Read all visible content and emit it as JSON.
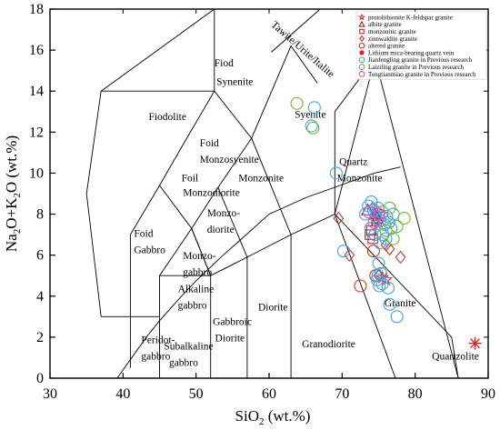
{
  "chart_data": {
    "type": "scatter",
    "title": "",
    "xlabel": {
      "main": "SiO",
      "sub": "2",
      "rest": " (wt.%)"
    },
    "ylabel": {
      "parts": [
        "Na",
        "2",
        "O+K",
        "2",
        "O (wt.%)"
      ]
    },
    "xlim": [
      30,
      90
    ],
    "ylim": [
      0,
      18
    ],
    "xticks": [
      "30",
      "40",
      "50",
      "60",
      "70",
      "80",
      "90"
    ],
    "yticks": [
      "0",
      "2",
      "4",
      "6",
      "8",
      "10",
      "12",
      "14",
      "16",
      "18"
    ],
    "field_boundaries": [
      [
        [
          41,
          0.5
        ],
        [
          41,
          7
        ],
        [
          45,
          9.4
        ],
        [
          48.4,
          11.5
        ],
        [
          52.5,
          14
        ],
        [
          57.6,
          11.7
        ],
        [
          63,
          16.2
        ],
        [
          66.6,
          14.4
        ]
      ],
      [
        [
          45,
          0
        ],
        [
          45,
          5
        ],
        [
          52,
          5
        ],
        [
          57,
          5.9
        ],
        [
          63,
          7
        ],
        [
          69,
          8
        ],
        [
          77.3,
          0
        ]
      ],
      [
        [
          52,
          0
        ],
        [
          52,
          5
        ],
        [
          49.4,
          7.3
        ],
        [
          53,
          9.3
        ],
        [
          57.6,
          11.7
        ]
      ],
      [
        [
          57,
          0
        ],
        [
          57,
          5.9
        ],
        [
          53,
          9.3
        ]
      ],
      [
        [
          63,
          0
        ],
        [
          63,
          7
        ],
        [
          57.6,
          11.7
        ]
      ],
      [
        [
          41,
          3
        ],
        [
          45,
          3
        ]
      ],
      [
        [
          45,
          5
        ],
        [
          49.4,
          7.3
        ],
        [
          45,
          9.4
        ]
      ],
      [
        [
          49.4,
          7.3
        ],
        [
          52,
          5
        ]
      ],
      [
        [
          69,
          8
        ],
        [
          69,
          13
        ]
      ],
      [
        [
          60.3,
          15.9
        ],
        [
          67,
          18
        ]
      ],
      [
        [
          37,
          3
        ],
        [
          35,
          9
        ],
        [
          37,
          14
        ],
        [
          52.5,
          14
        ],
        [
          52.5,
          18
        ]
      ],
      [
        [
          37,
          14
        ],
        [
          52.5,
          18
        ]
      ],
      [
        [
          41,
          3
        ],
        [
          37,
          3
        ]
      ]
    ],
    "irvine_baragar": [
      [
        39.2,
        0
      ],
      [
        40,
        0.4
      ],
      [
        43.2,
        2
      ],
      [
        45,
        2.8
      ],
      [
        48,
        4
      ],
      [
        50,
        4.75
      ],
      [
        53.7,
        6
      ],
      [
        55,
        6.4
      ],
      [
        60,
        8
      ],
      [
        65,
        8.8
      ],
      [
        74.4,
        10
      ],
      [
        78,
        10.3
      ]
    ],
    "field_labels": {
      "fiodolite": "Fiodolite",
      "fiod_syenite_1": "Fiod",
      "fiod_syenite_2": "Synenite",
      "foid_monzosyenite_1": "Foid",
      "foid_monzosyenite_2": "Monzosyenite",
      "foil_monzodiorite_1": "Foil",
      "foil_monzodiorite_2": "Monzodiorite",
      "foid_gabbro_1": "Foid",
      "foid_gabbro_2": "Gabbro",
      "monzonite": "Monzonite",
      "monzodiorite_1": "Monzo-",
      "monzodiorite_2": "diorite",
      "monzogabbro_1": "Monzo-",
      "monzogabbro_2": "gabbro",
      "alkaline_gabbro_1": "Alkaline",
      "alkaline_gabbro_2": "gabbro",
      "peridotgabbro_1": "Peridot-",
      "peridotgabbro_2": "gabbro",
      "subalkaline_gabbro_1": "Subalkaline",
      "subalkaline_gabbro_2": "gabbro",
      "gabbroic_diorite_1": "Gabbroic",
      "gabbroic_diorite_2": "Diorite",
      "diorite": "Diorite",
      "granodiorite": "Granodiorite",
      "granite": "Granite",
      "quartzolite": "Quartzolite",
      "syenite": "Syenite",
      "quartz_monzonite_1": "Quartz",
      "quartz_monzonite_2": "Monzonite",
      "tawite": "Tawite/Urite/Italite"
    },
    "legend": {
      "placement": "top-right",
      "entries": [
        {
          "label": "protolithionite K-feldspar granite",
          "marker": "star",
          "color": "#e03030"
        },
        {
          "label": "albite granite",
          "marker": "triangle",
          "color": "#8b2a2a"
        },
        {
          "label": "monzonitic granite",
          "marker": "square",
          "color": "#c0282a"
        },
        {
          "label": "zinnwaldite granite",
          "marker": "diamond",
          "color": "#c23a24"
        },
        {
          "label": "altered granite",
          "marker": "circle",
          "color": "#c23a24"
        },
        {
          "label": "Lithium mica-bearing quartz vein",
          "marker": "asterisk",
          "color": "#d42020"
        },
        {
          "label": "Jianfengling granite in Previous research",
          "marker": "circle",
          "color": "#44a3e0"
        },
        {
          "label": "Laiziling granite in Previous research",
          "marker": "circle",
          "color": "#7ab32e"
        },
        {
          "label": "Tongtianmiao granite in Previous research",
          "marker": "circle",
          "color": "#d450d4"
        }
      ]
    },
    "series": [
      {
        "name": "protolithionite K-feldspar granite",
        "marker": "star",
        "color": "#e03030",
        "points": [
          [
            74.5,
            7.7
          ],
          [
            74.8,
            8.0
          ],
          [
            75.0,
            7.6
          ],
          [
            75.3,
            8.0
          ],
          [
            76.0,
            4.8
          ],
          [
            75.5,
            4.9
          ]
        ]
      },
      {
        "name": "albite granite",
        "marker": "triangle",
        "color": "#8b2a2a",
        "points": [
          [
            73.5,
            8.2
          ],
          [
            74.5,
            8.0
          ],
          [
            74.8,
            7.8
          ]
        ]
      },
      {
        "name": "monzonitic granite",
        "marker": "square",
        "color": "#c0282a",
        "points": [
          [
            73.8,
            7.0
          ],
          [
            74.2,
            6.8
          ],
          [
            74.0,
            7.2
          ]
        ]
      },
      {
        "name": "zinnwaldite granite",
        "marker": "diamond",
        "color": "#c23a24",
        "points": [
          [
            69.5,
            7.8
          ],
          [
            71.0,
            6.0
          ],
          [
            75.0,
            5.0
          ],
          [
            76.5,
            6.3
          ],
          [
            78.0,
            5.9
          ],
          [
            76.0,
            6.5
          ],
          [
            74.2,
            8.3
          ]
        ]
      },
      {
        "name": "altered granite",
        "marker": "circle",
        "color": "#c23a24",
        "points": [
          [
            72.5,
            4.5
          ],
          [
            74.3,
            6.2
          ],
          [
            74.6,
            5.0
          ]
        ]
      },
      {
        "name": "Lithium mica-bearing quartz vein",
        "marker": "asterisk",
        "color": "#d42020",
        "points": [
          [
            88.2,
            1.7
          ]
        ]
      },
      {
        "name": "Jianfengling granite in Previous research",
        "marker": "circle",
        "color": "#44a3e0",
        "points": [
          [
            65.8,
            12.3
          ],
          [
            66.2,
            13.2
          ],
          [
            69.2,
            10.0
          ],
          [
            70.2,
            6.2
          ],
          [
            73.2,
            8.0
          ],
          [
            73.6,
            8.4
          ],
          [
            74.0,
            8.6
          ],
          [
            74.3,
            8.2
          ],
          [
            74.6,
            7.9
          ],
          [
            74.9,
            8.3
          ],
          [
            75.2,
            7.7
          ],
          [
            75.5,
            8.1
          ],
          [
            75.8,
            7.5
          ],
          [
            76.1,
            7.9
          ],
          [
            76.4,
            7.6
          ],
          [
            76.7,
            7.3
          ],
          [
            77.0,
            8.0
          ],
          [
            73.9,
            7.3
          ],
          [
            74.5,
            7.0
          ],
          [
            75.2,
            6.6
          ],
          [
            75.6,
            7.0
          ],
          [
            76.0,
            6.8
          ],
          [
            75.0,
            5.6
          ],
          [
            75.3,
            5.1
          ],
          [
            74.8,
            4.8
          ],
          [
            75.1,
            4.5
          ],
          [
            75.5,
            4.6
          ],
          [
            76.3,
            4.4
          ],
          [
            76.5,
            3.6
          ],
          [
            77.5,
            3.0
          ],
          [
            74.9,
            5.0
          ]
        ]
      },
      {
        "name": "Laiziling granite in Previous research",
        "marker": "circle",
        "color": "#7ab32e",
        "points": [
          [
            63.8,
            13.4
          ],
          [
            66.0,
            12.2
          ],
          [
            77.5,
            7.4
          ],
          [
            78.5,
            7.8
          ],
          [
            77.0,
            6.8
          ],
          [
            76.5,
            8.3
          ],
          [
            76.0,
            7.2
          ]
        ]
      },
      {
        "name": "Tongtianmiao granite in Previous research",
        "marker": "circle",
        "color": "#d450d4",
        "points": [
          [
            73.7,
            8.1
          ],
          [
            74.4,
            7.6
          ],
          [
            75.0,
            8.0
          ]
        ]
      }
    ]
  }
}
